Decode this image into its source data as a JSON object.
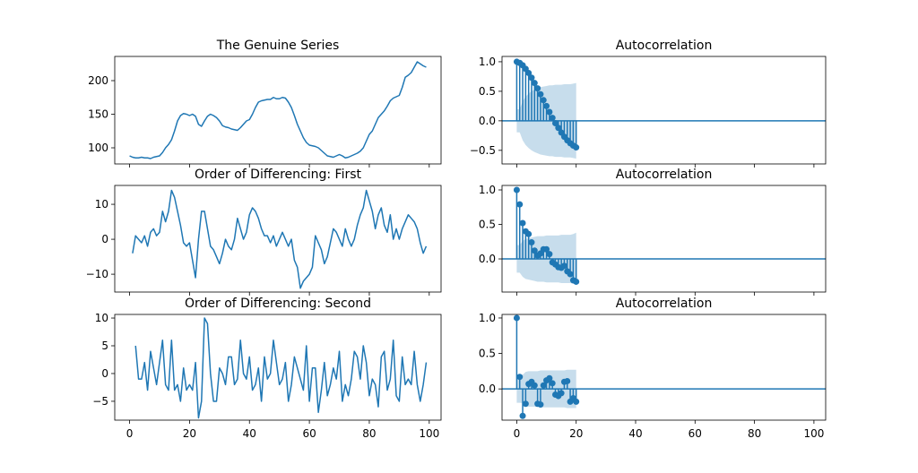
{
  "chart_data": [
    {
      "type": "line",
      "title": "The Genuine Series",
      "color": "#1f77b4",
      "x": [
        0,
        1,
        2,
        3,
        4,
        5,
        6,
        7,
        8,
        9,
        10,
        11,
        12,
        13,
        14,
        15,
        16,
        17,
        18,
        19,
        20,
        21,
        22,
        23,
        24,
        25,
        26,
        27,
        28,
        29,
        30,
        31,
        32,
        33,
        34,
        35,
        36,
        37,
        38,
        39,
        40,
        41,
        42,
        43,
        44,
        45,
        46,
        47,
        48,
        49,
        50,
        51,
        52,
        53,
        54,
        55,
        56,
        57,
        58,
        59,
        60,
        61,
        62,
        63,
        64,
        65,
        66,
        67,
        68,
        69,
        70,
        71,
        72,
        73,
        74,
        75,
        76,
        77,
        78,
        79,
        80,
        81,
        82,
        83,
        84,
        85,
        86,
        87,
        88,
        89,
        90,
        91,
        92,
        93,
        94,
        95,
        96,
        97,
        98,
        99
      ],
      "values": [
        88,
        86,
        85,
        85,
        86,
        85,
        85,
        84,
        86,
        87,
        88,
        93,
        100,
        105,
        112,
        125,
        140,
        148,
        151,
        150,
        148,
        150,
        147,
        135,
        132,
        140,
        147,
        150,
        148,
        145,
        140,
        133,
        131,
        130,
        128,
        127,
        126,
        130,
        135,
        140,
        142,
        150,
        160,
        168,
        170,
        171,
        172,
        172,
        175,
        173,
        173,
        175,
        174,
        168,
        160,
        148,
        135,
        125,
        115,
        108,
        104,
        103,
        102,
        100,
        96,
        92,
        88,
        87,
        86,
        88,
        90,
        88,
        85,
        86,
        88,
        90,
        92,
        95,
        100,
        110,
        120,
        125,
        135,
        145,
        150,
        155,
        162,
        170,
        174,
        176,
        178,
        190,
        205,
        208,
        212,
        220,
        228,
        225,
        222,
        220
      ],
      "xlim": [
        -4.95,
        103.95
      ],
      "ylim": [
        76,
        236
      ],
      "xticks": [
        0,
        20,
        40,
        60,
        80,
        100
      ],
      "xticklabels": false,
      "yticks": [
        100,
        150,
        200
      ]
    },
    {
      "type": "acf",
      "title": "Autocorrelation",
      "color": "#1f77b4",
      "lags": [
        0,
        1,
        2,
        3,
        4,
        5,
        6,
        7,
        8,
        9,
        10,
        11,
        12,
        13,
        14,
        15,
        16,
        17,
        18,
        19,
        20
      ],
      "values": [
        1.0,
        0.98,
        0.94,
        0.88,
        0.81,
        0.73,
        0.64,
        0.55,
        0.45,
        0.35,
        0.25,
        0.15,
        0.05,
        -0.04,
        -0.12,
        -0.2,
        -0.27,
        -0.33,
        -0.38,
        -0.42,
        -0.45
      ],
      "confint": [
        0.196,
        0.196,
        0.33,
        0.41,
        0.46,
        0.5,
        0.53,
        0.55,
        0.57,
        0.58,
        0.59,
        0.6,
        0.6,
        0.61,
        0.61,
        0.61,
        0.62,
        0.62,
        0.62,
        0.63,
        0.64
      ],
      "xlim": [
        -4.95,
        103.95
      ],
      "ylim": [
        -0.73,
        1.09
      ],
      "xticks": [
        0,
        20,
        40,
        60,
        80,
        100
      ],
      "xticklabels": false,
      "yticks": [
        {
          "value": -0.5,
          "label": "−0.5"
        },
        {
          "value": 0,
          "label": "0.0"
        },
        0.5,
        {
          "value": 1,
          "label": "1.0"
        }
      ]
    },
    {
      "type": "line",
      "title": "Order of Differencing: First",
      "color": "#1f77b4",
      "x": [
        1,
        2,
        3,
        4,
        5,
        6,
        7,
        8,
        9,
        10,
        11,
        12,
        13,
        14,
        15,
        16,
        17,
        18,
        19,
        20,
        21,
        22,
        23,
        24,
        25,
        26,
        27,
        28,
        29,
        30,
        31,
        32,
        33,
        34,
        35,
        36,
        37,
        38,
        39,
        40,
        41,
        42,
        43,
        44,
        45,
        46,
        47,
        48,
        49,
        50,
        51,
        52,
        53,
        54,
        55,
        56,
        57,
        58,
        59,
        60,
        61,
        62,
        63,
        64,
        65,
        66,
        67,
        68,
        69,
        70,
        71,
        72,
        73,
        74,
        75,
        76,
        77,
        78,
        79,
        80,
        81,
        82,
        83,
        84,
        85,
        86,
        87,
        88,
        89,
        90,
        91,
        92,
        93,
        94,
        95,
        96,
        97,
        98,
        99
      ],
      "values": [
        -4,
        1,
        0,
        -1,
        1,
        -2,
        2,
        3,
        1,
        2,
        8,
        5,
        8,
        14,
        12,
        8,
        4,
        -1,
        -2,
        -1,
        -6,
        -11,
        0,
        8,
        8,
        3,
        -2,
        -3,
        -5,
        -7,
        -4,
        0,
        -2,
        -3,
        0,
        6,
        3,
        0,
        2,
        7,
        9,
        8,
        6,
        3,
        1,
        1,
        -1,
        1,
        -2,
        0,
        2,
        0,
        -2,
        0,
        -6,
        -8,
        -14,
        -12,
        -11,
        -10,
        -8,
        1,
        -1,
        -3,
        -7,
        -5,
        -1,
        3,
        2,
        0,
        -2,
        3,
        0,
        -2,
        0,
        4,
        7,
        9,
        14,
        11,
        8,
        3,
        7,
        9,
        4,
        2,
        7,
        0,
        3,
        0,
        3,
        5,
        7,
        6,
        5,
        3,
        -1,
        -4,
        -2
      ],
      "xlim": [
        -4.95,
        103.95
      ],
      "ylim": [
        -15.1,
        15.4
      ],
      "xticks": [
        0,
        20,
        40,
        60,
        80,
        100
      ],
      "xticklabels": false,
      "yticks": [
        {
          "value": -10,
          "label": "−10"
        },
        0,
        10
      ]
    },
    {
      "type": "acf",
      "title": "Autocorrelation",
      "color": "#1f77b4",
      "lags": [
        0,
        1,
        2,
        3,
        4,
        5,
        6,
        7,
        8,
        9,
        10,
        11,
        12,
        13,
        14,
        15,
        16,
        17,
        18,
        19,
        20
      ],
      "values": [
        1.0,
        0.79,
        0.52,
        0.4,
        0.36,
        0.24,
        0.12,
        0.05,
        0.08,
        0.14,
        0.14,
        0.07,
        -0.05,
        -0.08,
        -0.12,
        -0.13,
        -0.1,
        -0.18,
        -0.22,
        -0.31,
        -0.33
      ],
      "confint": [
        0.2,
        0.2,
        0.26,
        0.29,
        0.3,
        0.31,
        0.32,
        0.33,
        0.33,
        0.33,
        0.34,
        0.34,
        0.34,
        0.34,
        0.34,
        0.35,
        0.35,
        0.35,
        0.35,
        0.36,
        0.38
      ],
      "xlim": [
        -4.95,
        103.95
      ],
      "ylim": [
        -0.48,
        1.065
      ],
      "xticks": [
        0,
        20,
        40,
        60,
        80,
        100
      ],
      "xticklabels": false,
      "yticks": [
        {
          "value": 0,
          "label": "0.0"
        },
        0.5,
        {
          "value": 1,
          "label": "1.0"
        }
      ]
    },
    {
      "type": "line",
      "title": "Order of Differencing: Second",
      "color": "#1f77b4",
      "x": [
        2,
        3,
        4,
        5,
        6,
        7,
        8,
        9,
        10,
        11,
        12,
        13,
        14,
        15,
        16,
        17,
        18,
        19,
        20,
        21,
        22,
        23,
        24,
        25,
        26,
        27,
        28,
        29,
        30,
        31,
        32,
        33,
        34,
        35,
        36,
        37,
        38,
        39,
        40,
        41,
        42,
        43,
        44,
        45,
        46,
        47,
        48,
        49,
        50,
        51,
        52,
        53,
        54,
        55,
        56,
        57,
        58,
        59,
        60,
        61,
        62,
        63,
        64,
        65,
        66,
        67,
        68,
        69,
        70,
        71,
        72,
        73,
        74,
        75,
        76,
        77,
        78,
        79,
        80,
        81,
        82,
        83,
        84,
        85,
        86,
        87,
        88,
        89,
        90,
        91,
        92,
        93,
        94,
        95,
        96,
        97,
        98,
        99
      ],
      "values": [
        5,
        -1,
        -1,
        2,
        -3,
        4,
        1,
        -2,
        2,
        6,
        -2,
        -3,
        6,
        -3,
        -2,
        -5,
        1,
        -3,
        -2,
        -3,
        2,
        -8,
        -5,
        10,
        9,
        0,
        -5,
        -5,
        1,
        0,
        -2,
        3,
        3,
        -2,
        -1,
        6,
        0,
        -1,
        3,
        -3,
        -2,
        1,
        -5,
        3,
        -1,
        0,
        6,
        2,
        -2,
        -1,
        2,
        -5,
        -2,
        3,
        1,
        -1,
        -3,
        5,
        -5,
        1,
        1,
        -7,
        -3,
        2,
        -4,
        -2,
        1,
        -1,
        4,
        -5,
        -2,
        -4,
        -1,
        4,
        3,
        -1,
        5,
        2,
        -4,
        -1,
        -2,
        -6,
        3,
        4,
        -3,
        -1,
        6,
        -4,
        -5,
        3,
        -2,
        -1,
        -2,
        4,
        -2,
        -5,
        -2,
        2
      ],
      "xlim": [
        -4.95,
        103.95
      ],
      "ylim": [
        -8.4,
        10.65
      ],
      "xticks": [
        0,
        20,
        40,
        60,
        80,
        100
      ],
      "xticklabels": true,
      "yticks": [
        {
          "value": -5,
          "label": "−5"
        },
        0,
        5,
        10
      ]
    },
    {
      "type": "acf",
      "title": "Autocorrelation",
      "color": "#1f77b4",
      "lags": [
        0,
        1,
        2,
        3,
        4,
        5,
        6,
        7,
        8,
        9,
        10,
        11,
        12,
        13,
        14,
        15,
        16,
        17,
        18,
        19,
        20
      ],
      "values": [
        1.0,
        0.17,
        -0.38,
        -0.21,
        0.07,
        0.1,
        0.05,
        -0.21,
        -0.22,
        0.05,
        0.12,
        0.15,
        0.08,
        -0.08,
        -0.1,
        -0.06,
        0.1,
        0.11,
        -0.18,
        -0.13,
        -0.18
      ],
      "confint": [
        0.196,
        0.196,
        0.2,
        0.24,
        0.25,
        0.25,
        0.25,
        0.25,
        0.26,
        0.26,
        0.26,
        0.26,
        0.26,
        0.26,
        0.26,
        0.26,
        0.26,
        0.27,
        0.27,
        0.27,
        0.27
      ],
      "xlim": [
        -4.95,
        103.95
      ],
      "ylim": [
        -0.44,
        1.05
      ],
      "xticks": [
        0,
        20,
        40,
        60,
        80,
        100
      ],
      "xticklabels": true,
      "yticks": [
        {
          "value": 0,
          "label": "0.0"
        },
        0.5,
        {
          "value": 1,
          "label": "1.0"
        }
      ]
    }
  ]
}
